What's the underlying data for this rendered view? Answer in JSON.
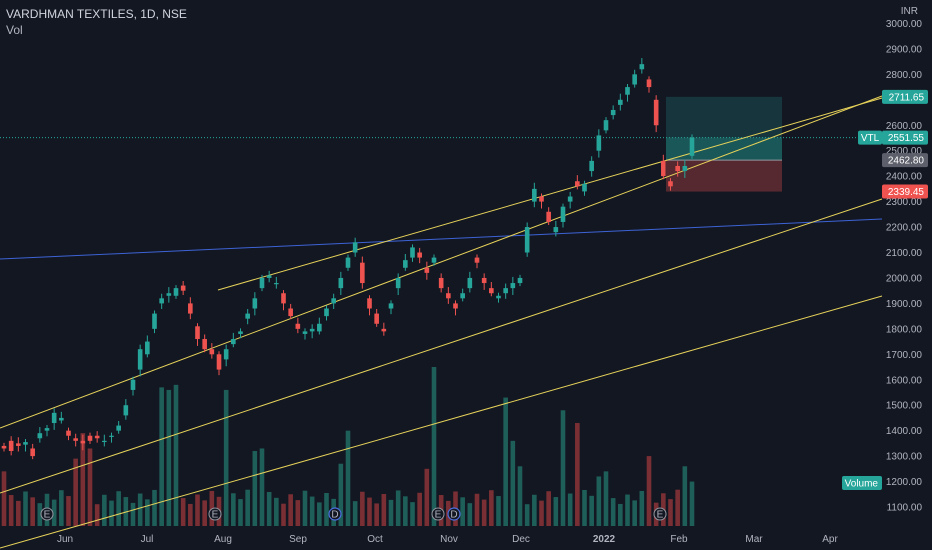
{
  "header": {
    "symbol_line": "VARDHMAN TEXTILES, 1D, NSE",
    "volume_label": "Vol"
  },
  "currency": "INR",
  "colors": {
    "background": "#131722",
    "up": "#26a69a",
    "down": "#ef5350",
    "channel": "#e6d25a",
    "trendline": "#3d63d6",
    "price_line": "#26a69a"
  },
  "price_badges": {
    "target": "2711.65",
    "last_symbol": "VTL",
    "last": "2551.55",
    "entry": "2462.80",
    "stop": "2339.45",
    "volume": "Volume"
  },
  "chart_data": {
    "type": "candlestick",
    "title": "VARDHMAN TEXTILES, 1D, NSE",
    "y_axis": {
      "unit": "INR",
      "range": [
        1020,
        3010
      ],
      "ticks": [
        "1100.00",
        "1200.00",
        "1300.00",
        "1400.00",
        "1500.00",
        "1600.00",
        "1700.00",
        "1800.00",
        "1900.00",
        "2000.00",
        "2100.00",
        "2200.00",
        "2300.00",
        "2400.00",
        "2500.00",
        "2600.00",
        "2700.00",
        "2800.00",
        "2900.00",
        "3000.00"
      ]
    },
    "x_axis": {
      "labels": [
        "Jun",
        "Jul",
        "Aug",
        "Sep",
        "Oct",
        "Nov",
        "Dec",
        "2022",
        "Feb",
        "Mar",
        "Apr"
      ]
    },
    "grid": false,
    "price_path": [
      [
        1340,
        1330
      ],
      [
        1360,
        1320
      ],
      [
        1350,
        1340
      ],
      [
        1345,
        1355
      ],
      [
        1330,
        1300
      ],
      [
        1370,
        1390
      ],
      [
        1400,
        1410
      ],
      [
        1430,
        1470
      ],
      [
        1440,
        1450
      ],
      [
        1400,
        1380
      ],
      [
        1370,
        1360
      ],
      [
        1360,
        1350
      ],
      [
        1380,
        1360
      ],
      [
        1380,
        1370
      ],
      [
        1360,
        1360
      ],
      [
        1380,
        1380
      ],
      [
        1400,
        1420
      ],
      [
        1460,
        1500
      ],
      [
        1560,
        1600
      ],
      [
        1640,
        1720
      ],
      [
        1700,
        1750
      ],
      [
        1800,
        1860
      ],
      [
        1900,
        1920
      ],
      [
        1930,
        1940
      ],
      [
        1930,
        1960
      ],
      [
        1970,
        1950
      ],
      [
        1900,
        1860
      ],
      [
        1810,
        1760
      ],
      [
        1760,
        1720
      ],
      [
        1720,
        1700
      ],
      [
        1700,
        1640
      ],
      [
        1680,
        1720
      ],
      [
        1740,
        1760
      ],
      [
        1780,
        1790
      ],
      [
        1840,
        1860
      ],
      [
        1880,
        1920
      ],
      [
        1960,
        2000
      ],
      [
        2000,
        2010
      ],
      [
        1980,
        1980
      ],
      [
        1940,
        1900
      ],
      [
        1880,
        1850
      ],
      [
        1820,
        1800
      ],
      [
        1780,
        1790
      ],
      [
        1790,
        1800
      ],
      [
        1790,
        1820
      ],
      [
        1850,
        1880
      ],
      [
        1900,
        1920
      ],
      [
        1960,
        2000
      ],
      [
        2040,
        2080
      ],
      [
        2100,
        2140
      ],
      [
        2060,
        1980
      ],
      [
        1920,
        1880
      ],
      [
        1860,
        1820
      ],
      [
        1800,
        1790
      ],
      [
        1880,
        1900
      ],
      [
        1960,
        2000
      ],
      [
        2040,
        2070
      ],
      [
        2080,
        2120
      ],
      [
        2100,
        2080
      ],
      [
        2040,
        2020
      ],
      [
        2060,
        2080
      ],
      [
        2000,
        1960
      ],
      [
        1940,
        1920
      ],
      [
        1900,
        1880
      ],
      [
        1920,
        1940
      ],
      [
        1960,
        2000
      ],
      [
        2080,
        2060
      ],
      [
        2000,
        1980
      ],
      [
        1960,
        1940
      ],
      [
        1920,
        1930
      ],
      [
        1940,
        1960
      ],
      [
        1960,
        1980
      ],
      [
        1980,
        2000
      ],
      [
        2100,
        2200
      ],
      [
        2300,
        2350
      ],
      [
        2320,
        2300
      ],
      [
        2260,
        2220
      ],
      [
        2180,
        2200
      ],
      [
        2220,
        2280
      ],
      [
        2300,
        2320
      ],
      [
        2380,
        2360
      ],
      [
        2340,
        2370
      ],
      [
        2420,
        2460
      ],
      [
        2500,
        2560
      ],
      [
        2580,
        2620
      ],
      [
        2640,
        2660
      ],
      [
        2680,
        2700
      ],
      [
        2720,
        2750
      ],
      [
        2760,
        2800
      ],
      [
        2820,
        2840
      ],
      [
        2780,
        2750
      ],
      [
        2700,
        2600
      ],
      [
        2460,
        2400
      ],
      [
        2380,
        2360
      ],
      [
        2440,
        2420
      ],
      [
        2420,
        2440
      ],
      [
        2480,
        2552
      ]
    ],
    "volume_peaks": [
      1240,
      1330,
      1580,
      1330,
      1600,
      1650,
      1260,
      1240,
      1630,
      1390,
      1560,
      1320,
      1270,
      1250,
      1360,
      1220,
      1260,
      1290,
      1330
    ]
  },
  "x_axis": {
    "labels": [
      {
        "text": "Jun"
      },
      {
        "text": "Jul"
      },
      {
        "text": "Aug"
      },
      {
        "text": "Sep"
      },
      {
        "text": "Oct"
      },
      {
        "text": "Nov"
      },
      {
        "text": "Dec"
      },
      {
        "text": "2022"
      },
      {
        "text": "Feb"
      },
      {
        "text": "Mar"
      },
      {
        "text": "Apr"
      }
    ]
  },
  "events": [
    {
      "letter": "E"
    },
    {
      "letter": "E"
    },
    {
      "letter": "D"
    },
    {
      "letter": "E"
    },
    {
      "letter": "D"
    },
    {
      "letter": "E"
    }
  ]
}
